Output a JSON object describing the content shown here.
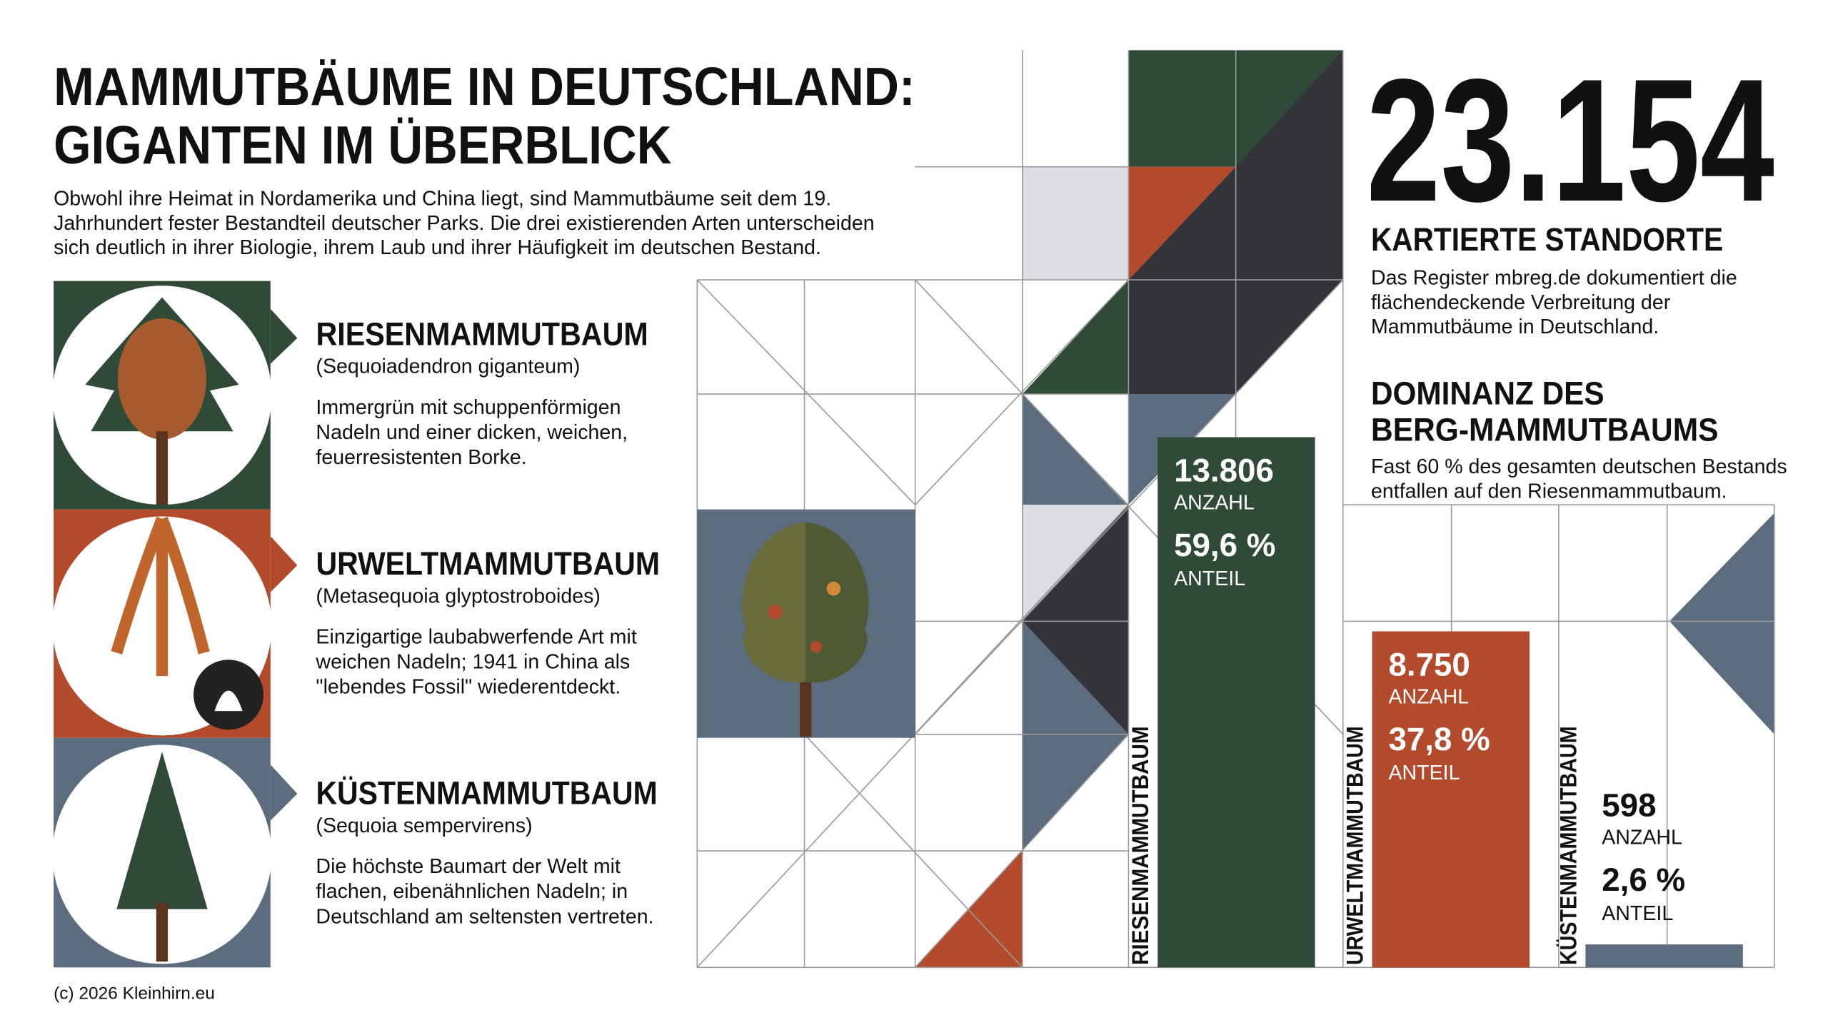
{
  "header": {
    "title": [
      "MAMMUTBÄUME IN DEUTSCHLAND:",
      "GIGANTEN IM ÜBERBLICK"
    ],
    "intro": [
      "Obwohl ihre Heimat in Nordamerika und China liegt, sind Mammutbäume seit dem 19.",
      "Jahrhundert fester Bestandteil deutscher Parks. Die drei existierenden Arten unterscheiden",
      "sich deutlich in ihrer Biologie, ihrem Laub und ihrer Häufigkeit im deutschen Bestand."
    ]
  },
  "species": [
    {
      "name": "RIESENMAMMUTBAUM",
      "latin": "(Sequoiadendron giganteum)",
      "description": [
        "Immergrün mit schuppenförmigen",
        "Nadeln und einer dicken, weichen,",
        "feuerresistenten Borke."
      ]
    },
    {
      "name": "URWELTMAMMUTBAUM",
      "latin": "(Metasequoia glyptostroboides)",
      "description": [
        "Einzigartige laubabwerfende Art mit",
        "weichen Nadeln; 1941 in China als",
        "\"lebendes Fossil\" wiederentdeckt."
      ]
    },
    {
      "name": "KÜSTENMAMMUTBAUM",
      "latin": "(Sequoia sempervirens)",
      "description": [
        "Die höchste Baumart der Welt mit",
        "flachen, eibenähnlichen Nadeln; in",
        "Deutschland am seltensten vertreten."
      ]
    }
  ],
  "stat": {
    "value": "23.154",
    "label": "KARTIERTE STANDORTE",
    "text": [
      "Das Register mbreg.de dokumentiert die",
      "flächendeckende Verbreitung der",
      "Mammutbäume in Deutschland."
    ]
  },
  "chart_data": {
    "type": "bar",
    "title": [
      "DOMINANZ DES",
      "BERG-MAMMUTBAUMS"
    ],
    "subtitle": [
      "Fast 60 % des gesamten deutschen Bestands",
      "entfallen auf den Riesenmammutbaum."
    ],
    "categories": [
      "RIESENMAMMUTBAUM",
      "URWELTMAMMUTBAUM",
      "KÜSTENMAMMUTBAUM"
    ],
    "values": [
      13806,
      8750,
      598
    ],
    "value_labels": [
      "13.806",
      "8.750",
      "598"
    ],
    "value_caption": "ANZAHL",
    "share_labels": [
      "59,6 %",
      "37,8 %",
      "2,6 %"
    ],
    "share_caption": "ANTEIL",
    "colors": [
      "#2f4a36",
      "#b34a2b",
      "#5b6c7e"
    ]
  },
  "footer": "(c) 2026 Kleinhirn.eu"
}
